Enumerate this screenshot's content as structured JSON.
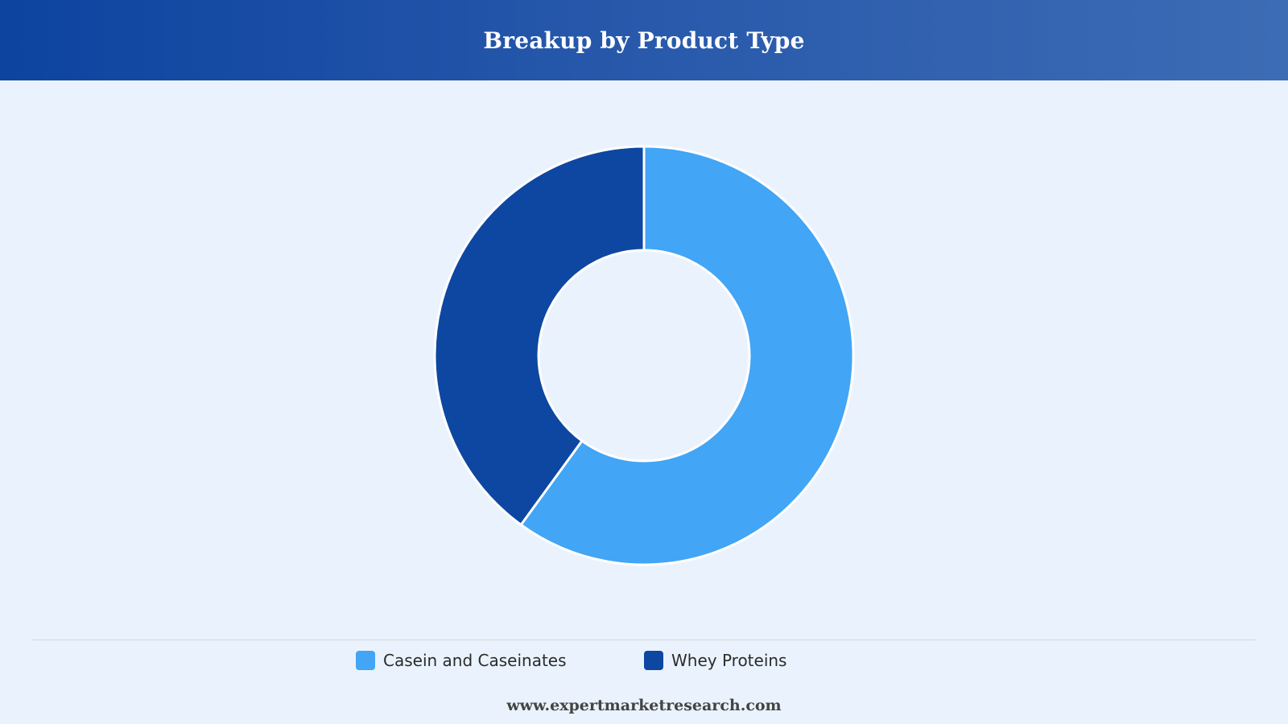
{
  "chart_data": {
    "type": "pie",
    "title": "Breakup by Product Type",
    "categories": [
      "Casein and Caseinates",
      "Whey Proteins"
    ],
    "values": [
      60,
      40
    ],
    "colors": [
      "#42a5f5",
      "#0d47a1"
    ],
    "donut": true,
    "legend_position": "bottom"
  },
  "footer": {
    "source": "www.expertmarketresearch.com"
  }
}
